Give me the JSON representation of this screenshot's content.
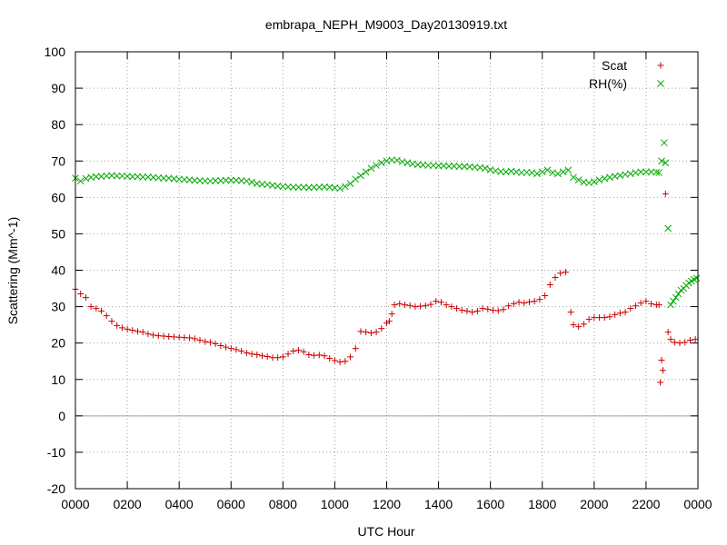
{
  "chart_data": {
    "type": "scatter",
    "title": "embrapa_NEPH_M9003_Day20130919.txt",
    "xlabel": "UTC Hour",
    "ylabel": "Scattering (Mm^-1)",
    "xlim": [
      0,
      24
    ],
    "ylim": [
      -20,
      100
    ],
    "x_ticks": [
      {
        "x": 0,
        "label": "0000"
      },
      {
        "x": 2,
        "label": "0200"
      },
      {
        "x": 4,
        "label": "0400"
      },
      {
        "x": 6,
        "label": "0600"
      },
      {
        "x": 8,
        "label": "0800"
      },
      {
        "x": 10,
        "label": "1000"
      },
      {
        "x": 12,
        "label": "1200"
      },
      {
        "x": 14,
        "label": "1400"
      },
      {
        "x": 16,
        "label": "1600"
      },
      {
        "x": 18,
        "label": "1800"
      },
      {
        "x": 20,
        "label": "2000"
      },
      {
        "x": 22,
        "label": "2200"
      },
      {
        "x": 24,
        "label": "0000"
      }
    ],
    "y_ticks": [
      "-20",
      "-10",
      "0",
      "10",
      "20",
      "30",
      "40",
      "50",
      "60",
      "70",
      "80",
      "90",
      "100"
    ],
    "grid": true,
    "zero_line": true,
    "legend_position": "top-right",
    "series": [
      {
        "name": "Scat",
        "marker": "plus",
        "color": "#cc0000",
        "points": [
          [
            0.0,
            34.8
          ],
          [
            0.2,
            33.5
          ],
          [
            0.4,
            32.5
          ],
          [
            0.6,
            30.0
          ],
          [
            0.8,
            29.5
          ],
          [
            1.0,
            28.8
          ],
          [
            1.2,
            27.5
          ],
          [
            1.4,
            26.0
          ],
          [
            1.6,
            24.8
          ],
          [
            1.8,
            24.2
          ],
          [
            2.0,
            23.8
          ],
          [
            2.2,
            23.5
          ],
          [
            2.4,
            23.2
          ],
          [
            2.6,
            23.0
          ],
          [
            2.8,
            22.5
          ],
          [
            3.0,
            22.2
          ],
          [
            3.2,
            22.0
          ],
          [
            3.4,
            21.9
          ],
          [
            3.6,
            21.8
          ],
          [
            3.8,
            21.7
          ],
          [
            4.0,
            21.6
          ],
          [
            4.2,
            21.5
          ],
          [
            4.4,
            21.4
          ],
          [
            4.6,
            21.2
          ],
          [
            4.8,
            20.8
          ],
          [
            5.0,
            20.4
          ],
          [
            5.2,
            20.2
          ],
          [
            5.4,
            19.8
          ],
          [
            5.6,
            19.3
          ],
          [
            5.8,
            18.9
          ],
          [
            6.0,
            18.5
          ],
          [
            6.2,
            18.2
          ],
          [
            6.4,
            17.8
          ],
          [
            6.6,
            17.3
          ],
          [
            6.8,
            17.0
          ],
          [
            7.0,
            16.8
          ],
          [
            7.2,
            16.5
          ],
          [
            7.4,
            16.3
          ],
          [
            7.6,
            16.0
          ],
          [
            7.8,
            16.0
          ],
          [
            8.0,
            16.2
          ],
          [
            8.2,
            17.0
          ],
          [
            8.4,
            17.8
          ],
          [
            8.6,
            18.0
          ],
          [
            8.8,
            17.6
          ],
          [
            9.0,
            16.8
          ],
          [
            9.2,
            16.6
          ],
          [
            9.4,
            16.7
          ],
          [
            9.6,
            16.5
          ],
          [
            9.8,
            15.8
          ],
          [
            10.0,
            15.2
          ],
          [
            10.2,
            14.8
          ],
          [
            10.4,
            15.0
          ],
          [
            10.6,
            16.2
          ],
          [
            10.8,
            18.5
          ],
          [
            11.0,
            23.2
          ],
          [
            11.2,
            23.0
          ],
          [
            11.4,
            22.8
          ],
          [
            11.6,
            23.0
          ],
          [
            11.8,
            24.0
          ],
          [
            12.0,
            25.5
          ],
          [
            12.1,
            26.0
          ],
          [
            12.2,
            28.0
          ],
          [
            12.3,
            30.5
          ],
          [
            12.5,
            30.8
          ],
          [
            12.7,
            30.5
          ],
          [
            12.9,
            30.3
          ],
          [
            13.1,
            30.0
          ],
          [
            13.3,
            30.1
          ],
          [
            13.5,
            30.3
          ],
          [
            13.7,
            30.6
          ],
          [
            13.9,
            31.5
          ],
          [
            14.1,
            31.2
          ],
          [
            14.3,
            30.5
          ],
          [
            14.5,
            30.0
          ],
          [
            14.7,
            29.5
          ],
          [
            14.9,
            29.0
          ],
          [
            15.1,
            28.8
          ],
          [
            15.3,
            28.5
          ],
          [
            15.5,
            28.8
          ],
          [
            15.7,
            29.5
          ],
          [
            15.9,
            29.3
          ],
          [
            16.1,
            29.0
          ],
          [
            16.3,
            28.9
          ],
          [
            16.5,
            29.2
          ],
          [
            16.7,
            30.2
          ],
          [
            16.9,
            30.8
          ],
          [
            17.1,
            31.2
          ],
          [
            17.3,
            31.0
          ],
          [
            17.5,
            31.3
          ],
          [
            17.7,
            31.5
          ],
          [
            17.9,
            32.0
          ],
          [
            18.1,
            33.0
          ],
          [
            18.3,
            36.0
          ],
          [
            18.5,
            38.0
          ],
          [
            18.7,
            39.2
          ],
          [
            18.9,
            39.5
          ],
          [
            19.1,
            28.5
          ],
          [
            19.2,
            25.0
          ],
          [
            19.4,
            24.5
          ],
          [
            19.6,
            25.2
          ],
          [
            19.8,
            26.5
          ],
          [
            20.0,
            27.0
          ],
          [
            20.2,
            27.0
          ],
          [
            20.4,
            27.0
          ],
          [
            20.6,
            27.2
          ],
          [
            20.8,
            27.8
          ],
          [
            21.0,
            28.2
          ],
          [
            21.2,
            28.5
          ],
          [
            21.4,
            29.5
          ],
          [
            21.6,
            30.2
          ],
          [
            21.8,
            31.0
          ],
          [
            22.0,
            31.5
          ],
          [
            22.2,
            30.8
          ],
          [
            22.4,
            30.5
          ],
          [
            22.5,
            30.5
          ],
          [
            22.55,
            9.2
          ],
          [
            22.6,
            15.3
          ],
          [
            22.65,
            12.5
          ],
          [
            22.75,
            61.0
          ],
          [
            22.85,
            23.0
          ],
          [
            22.95,
            21.0
          ],
          [
            23.1,
            20.2
          ],
          [
            23.3,
            20.0
          ],
          [
            23.5,
            20.2
          ],
          [
            23.7,
            20.8
          ],
          [
            23.9,
            21.0
          ]
        ]
      },
      {
        "name": "RH(%)",
        "marker": "cross",
        "color": "#00aa00",
        "points": [
          [
            0.0,
            65.3
          ],
          [
            0.2,
            64.5
          ],
          [
            0.4,
            65.2
          ],
          [
            0.6,
            65.5
          ],
          [
            0.8,
            65.7
          ],
          [
            1.0,
            65.8
          ],
          [
            1.2,
            65.9
          ],
          [
            1.4,
            66.0
          ],
          [
            1.6,
            65.9
          ],
          [
            1.8,
            65.9
          ],
          [
            2.0,
            65.8
          ],
          [
            2.2,
            65.7
          ],
          [
            2.4,
            65.7
          ],
          [
            2.6,
            65.6
          ],
          [
            2.8,
            65.6
          ],
          [
            3.0,
            65.5
          ],
          [
            3.2,
            65.4
          ],
          [
            3.4,
            65.3
          ],
          [
            3.6,
            65.3
          ],
          [
            3.8,
            65.1
          ],
          [
            4.0,
            65.0
          ],
          [
            4.2,
            64.9
          ],
          [
            4.4,
            64.8
          ],
          [
            4.6,
            64.7
          ],
          [
            4.8,
            64.6
          ],
          [
            5.0,
            64.5
          ],
          [
            5.2,
            64.5
          ],
          [
            5.4,
            64.6
          ],
          [
            5.6,
            64.6
          ],
          [
            5.8,
            64.7
          ],
          [
            6.0,
            64.7
          ],
          [
            6.2,
            64.7
          ],
          [
            6.4,
            64.6
          ],
          [
            6.6,
            64.5
          ],
          [
            6.8,
            64.2
          ],
          [
            7.0,
            63.8
          ],
          [
            7.2,
            63.6
          ],
          [
            7.4,
            63.5
          ],
          [
            7.6,
            63.3
          ],
          [
            7.8,
            63.1
          ],
          [
            8.0,
            63.0
          ],
          [
            8.2,
            62.9
          ],
          [
            8.4,
            62.8
          ],
          [
            8.6,
            62.8
          ],
          [
            8.8,
            62.8
          ],
          [
            9.0,
            62.7
          ],
          [
            9.2,
            62.8
          ],
          [
            9.4,
            62.8
          ],
          [
            9.6,
            62.9
          ],
          [
            9.8,
            62.8
          ],
          [
            10.0,
            62.6
          ],
          [
            10.2,
            62.5
          ],
          [
            10.4,
            63.0
          ],
          [
            10.6,
            63.8
          ],
          [
            10.8,
            65.0
          ],
          [
            11.0,
            66.0
          ],
          [
            11.2,
            67.0
          ],
          [
            11.4,
            68.0
          ],
          [
            11.6,
            68.8
          ],
          [
            11.8,
            69.5
          ],
          [
            12.0,
            70.0
          ],
          [
            12.2,
            70.3
          ],
          [
            12.4,
            70.2
          ],
          [
            12.6,
            69.8
          ],
          [
            12.8,
            69.5
          ],
          [
            13.0,
            69.2
          ],
          [
            13.2,
            69.0
          ],
          [
            13.4,
            68.9
          ],
          [
            13.6,
            68.8
          ],
          [
            13.8,
            68.8
          ],
          [
            14.0,
            68.7
          ],
          [
            14.2,
            68.7
          ],
          [
            14.4,
            68.6
          ],
          [
            14.6,
            68.6
          ],
          [
            14.8,
            68.5
          ],
          [
            15.0,
            68.5
          ],
          [
            15.2,
            68.4
          ],
          [
            15.4,
            68.3
          ],
          [
            15.6,
            68.2
          ],
          [
            15.8,
            68.0
          ],
          [
            16.0,
            67.6
          ],
          [
            16.2,
            67.3
          ],
          [
            16.4,
            67.1
          ],
          [
            16.6,
            67.0
          ],
          [
            16.8,
            67.2
          ],
          [
            17.0,
            67.0
          ],
          [
            17.2,
            66.8
          ],
          [
            17.4,
            66.9
          ],
          [
            17.6,
            66.8
          ],
          [
            17.8,
            66.5
          ],
          [
            18.0,
            67.0
          ],
          [
            18.2,
            67.5
          ],
          [
            18.4,
            66.8
          ],
          [
            18.6,
            66.5
          ],
          [
            18.8,
            67.0
          ],
          [
            19.0,
            67.5
          ],
          [
            19.2,
            65.5
          ],
          [
            19.4,
            64.8
          ],
          [
            19.6,
            64.2
          ],
          [
            19.8,
            64.0
          ],
          [
            20.0,
            64.3
          ],
          [
            20.2,
            64.8
          ],
          [
            20.4,
            65.2
          ],
          [
            20.6,
            65.5
          ],
          [
            20.8,
            65.8
          ],
          [
            21.0,
            66.0
          ],
          [
            21.2,
            66.3
          ],
          [
            21.4,
            66.5
          ],
          [
            21.6,
            66.8
          ],
          [
            21.8,
            67.0
          ],
          [
            22.0,
            67.0
          ],
          [
            22.2,
            67.0
          ],
          [
            22.4,
            66.9
          ],
          [
            22.5,
            66.8
          ],
          [
            22.6,
            70.0
          ],
          [
            22.7,
            75.0
          ],
          [
            22.75,
            69.5
          ],
          [
            22.85,
            51.5
          ],
          [
            22.95,
            30.5
          ],
          [
            23.05,
            31.5
          ],
          [
            23.15,
            32.5
          ],
          [
            23.25,
            33.5
          ],
          [
            23.35,
            34.5
          ],
          [
            23.45,
            35.0
          ],
          [
            23.55,
            35.8
          ],
          [
            23.65,
            36.5
          ],
          [
            23.75,
            37.0
          ],
          [
            23.85,
            37.5
          ],
          [
            23.95,
            37.8
          ]
        ]
      }
    ]
  }
}
